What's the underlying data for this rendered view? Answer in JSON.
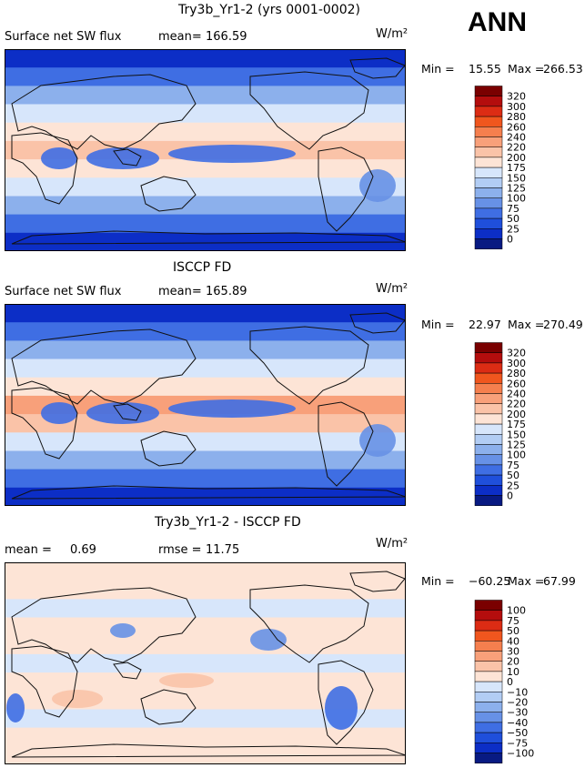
{
  "season": "ANN",
  "colors": {
    "ocean_deep_blue": "#1447d6",
    "land_line": "#111111",
    "warm_center": "#ee6e3e",
    "light": "#f6e4dc"
  },
  "chart_data": [
    {
      "type": "heatmap",
      "title": "Try3b_Yr1-2 (yrs 0001-0002)",
      "variable": "Surface net SW flux",
      "mean_label": "mean=",
      "mean": "166.59",
      "units": "W/m²",
      "min_label": "Min =",
      "min": "15.55",
      "max_label": "Max =",
      "max": "266.53",
      "levels": [
        "320",
        "300",
        "280",
        "260",
        "240",
        "220",
        "200",
        "175",
        "150",
        "125",
        "100",
        "75",
        "50",
        "25",
        "0"
      ],
      "colors": [
        "#7a0000",
        "#b40d0d",
        "#dc2c14",
        "#f0561e",
        "#f57f4e",
        "#f8a07a",
        "#fac3a8",
        "#fde4d6",
        "#d7e6fb",
        "#b2cdf4",
        "#8cb0ec",
        "#6791e6",
        "#3f6ee3",
        "#1f4fdb",
        "#0c2ec6",
        "#081a82"
      ],
      "band_field": [
        1,
        3,
        5,
        7,
        8,
        9,
        8,
        7,
        5,
        3,
        1
      ]
    },
    {
      "type": "heatmap",
      "title": "ISCCP FD",
      "variable": "Surface net SW flux",
      "mean_label": "mean=",
      "mean": "165.89",
      "units": "W/m²",
      "min_label": "Min =",
      "min": "22.97",
      "max_label": "Max =",
      "max": "270.49",
      "levels": [
        "320",
        "300",
        "280",
        "260",
        "240",
        "220",
        "200",
        "175",
        "150",
        "125",
        "100",
        "75",
        "50",
        "25",
        "0"
      ],
      "colors": [
        "#7a0000",
        "#b40d0d",
        "#dc2c14",
        "#f0561e",
        "#f57f4e",
        "#f8a07a",
        "#fac3a8",
        "#fde4d6",
        "#d7e6fb",
        "#b2cdf4",
        "#8cb0ec",
        "#6791e6",
        "#3f6ee3",
        "#1f4fdb",
        "#0c2ec6",
        "#081a82"
      ],
      "band_field": [
        1,
        3,
        5,
        7,
        8,
        10,
        9,
        7,
        5,
        3,
        1
      ]
    },
    {
      "type": "heatmap",
      "title": "Try3b_Yr1-2 - ISCCP FD",
      "mean_label": "mean =",
      "mean": "0.69",
      "rmse_label": "rmse =",
      "rmse": "11.75",
      "units": "W/m²",
      "min_label": "Min =",
      "min": "−60.25",
      "max_label": "Max =",
      "max": "67.99",
      "levels": [
        "100",
        "75",
        "50",
        "40",
        "30",
        "20",
        "10",
        "0",
        "−10",
        "−20",
        "−30",
        "−40",
        "−50",
        "−75",
        "−100"
      ],
      "colors": [
        "#7a0000",
        "#b40d0d",
        "#dc2c14",
        "#f0561e",
        "#f57f4e",
        "#f8a07a",
        "#fac3a8",
        "#fde4d6",
        "#d7e6fb",
        "#b2cdf4",
        "#8cb0ec",
        "#6791e6",
        "#3f6ee3",
        "#1f4fdb",
        "#0c2ec6",
        "#081a82"
      ],
      "band_field": [
        8,
        8,
        7,
        8,
        8,
        7,
        8,
        8,
        7,
        8,
        8
      ]
    }
  ]
}
